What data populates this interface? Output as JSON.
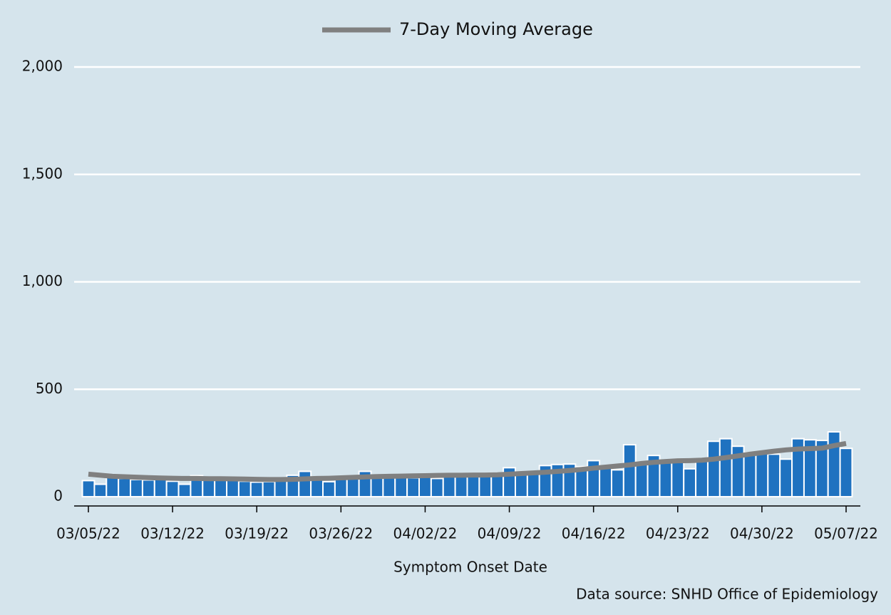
{
  "chart_data": {
    "type": "bar-line",
    "legend_position": "top",
    "x_label": "Symptom Onset Date",
    "source": "Data source: SNHD Office of Epidemiology",
    "categories": [
      "03/05/22",
      null,
      null,
      null,
      null,
      null,
      null,
      "03/12/22",
      null,
      null,
      null,
      null,
      null,
      null,
      "03/19/22",
      null,
      null,
      null,
      null,
      null,
      null,
      "03/26/22",
      null,
      null,
      null,
      null,
      null,
      null,
      "04/02/22",
      null,
      null,
      null,
      null,
      null,
      null,
      "04/09/22",
      null,
      null,
      null,
      null,
      null,
      null,
      "04/16/22",
      null,
      null,
      null,
      null,
      null,
      null,
      "04/23/22",
      null,
      null,
      null,
      null,
      null,
      null,
      "04/30/22",
      null,
      null,
      null,
      null,
      null,
      null,
      "05/07/22"
    ],
    "series": [
      {
        "type": "bar",
        "color": "#1f72c0",
        "values": [
          75,
          58,
          92,
          85,
          80,
          78,
          80,
          72,
          58,
          98,
          85,
          80,
          80,
          72,
          68,
          70,
          80,
          100,
          118,
          80,
          70,
          90,
          88,
          118,
          95,
          90,
          90,
          88,
          100,
          85,
          100,
          105,
          108,
          100,
          110,
          135,
          108,
          115,
          145,
          150,
          152,
          140,
          168,
          140,
          125,
          242,
          162,
          192,
          160,
          168,
          130,
          175,
          258,
          270,
          235,
          205,
          205,
          198,
          175,
          270,
          265,
          262,
          302,
          225
        ]
      },
      {
        "type": "line",
        "name": "7-Day Moving Average",
        "color": "#808080",
        "values": [
          105,
          100,
          95,
          93,
          91,
          89,
          87,
          86,
          85,
          85,
          84,
          84,
          83,
          82,
          81,
          80,
          80,
          81,
          83,
          85,
          86,
          88,
          90,
          92,
          94,
          95,
          96,
          97,
          98,
          99,
          100,
          100,
          101,
          101,
          102,
          105,
          108,
          111,
          114,
          118,
          122,
          127,
          133,
          138,
          143,
          148,
          155,
          160,
          164,
          167,
          168,
          170,
          175,
          182,
          190,
          198,
          205,
          212,
          218,
          222,
          224,
          226,
          238,
          248
        ]
      }
    ],
    "ylim": [
      -43,
      2000
    ],
    "yticks": [
      0,
      500,
      {
        "value": 1000,
        "label": "1,000"
      },
      {
        "value": 1500,
        "label": "1,500"
      },
      {
        "value": 2000,
        "label": "2,000"
      }
    ],
    "grid": true
  }
}
